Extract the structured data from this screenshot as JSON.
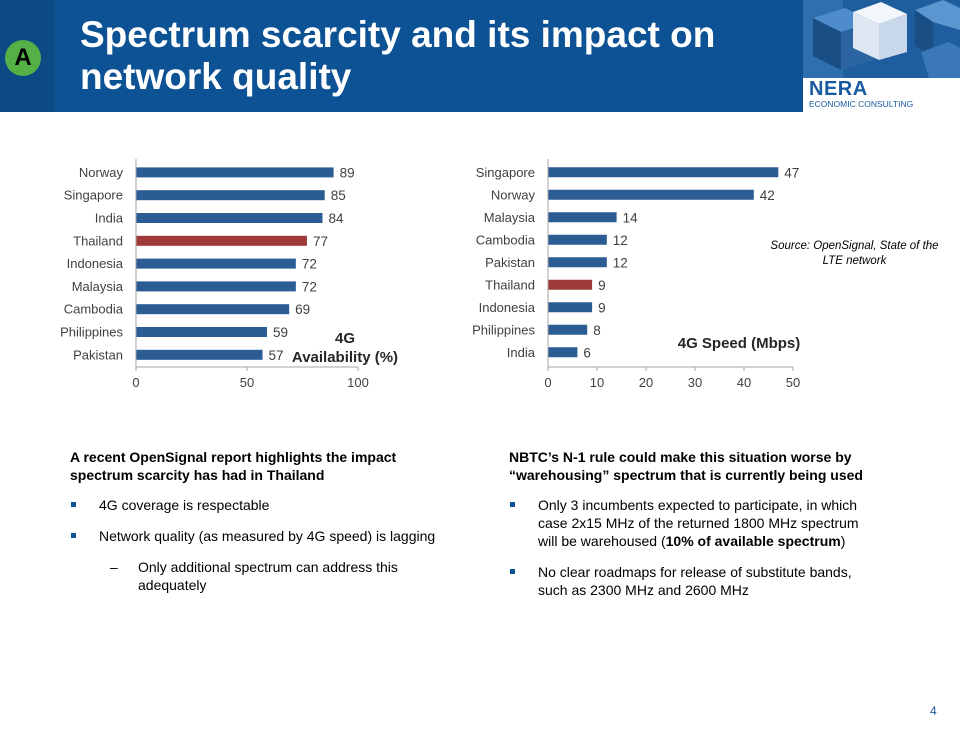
{
  "header": {
    "badge": "A",
    "title": "Spectrum scarcity and its impact on network quality",
    "logo_name": "NERA",
    "logo_sub": "ECONOMIC CONSULTING"
  },
  "colors": {
    "header_blue": "#0c5294",
    "bar": "#2b5c93",
    "highlight": "#9e3a3a",
    "badge": "#55b046"
  },
  "chart_data": [
    {
      "type": "bar",
      "orientation": "horizontal",
      "title": "4G Availability (%)",
      "categories": [
        "Norway",
        "Singapore",
        "India",
        "Thailand",
        "Indonesia",
        "Malaysia",
        "Cambodia",
        "Philippines",
        "Pakistan"
      ],
      "values": [
        89,
        85,
        84,
        77,
        72,
        72,
        69,
        59,
        57
      ],
      "highlight": "Thailand",
      "xlim": [
        0,
        100
      ],
      "xticks": [
        0,
        50,
        100
      ],
      "grid": false
    },
    {
      "type": "bar",
      "orientation": "horizontal",
      "title": "4G Speed (Mbps)",
      "categories": [
        "Singapore",
        "Norway",
        "Malaysia",
        "Cambodia",
        "Pakistan",
        "Thailand",
        "Indonesia",
        "Philippines",
        "India"
      ],
      "values": [
        47,
        42,
        14,
        12,
        12,
        9,
        9,
        8,
        6
      ],
      "highlight": "Thailand",
      "xlim": [
        0,
        50
      ],
      "xticks": [
        0,
        10,
        20,
        30,
        40,
        50
      ],
      "grid": false
    }
  ],
  "source": "Source: OpenSignal, State of the LTE network",
  "left": {
    "heading": "A recent OpenSignal report highlights the impact spectrum scarcity has had in Thailand",
    "bullet1": "4G coverage is respectable",
    "bullet2": "Network quality (as measured by 4G speed) is lagging",
    "sub_dash": "–",
    "sub1": "Only additional spectrum can address this adequately"
  },
  "right": {
    "heading": "NBTC’s N-1 rule could make this situation worse by “warehousing” spectrum that is currently being used",
    "bullet1_a": "Only 3 incumbents expected to participate, in which case 2x15 MHz of the returned 1800 MHz spectrum will be warehoused (",
    "bullet1_b": "10% of available spectrum",
    "bullet1_c": ")",
    "bullet2": "No clear roadmaps for release of substitute bands, such as 2300 MHz  and 2600 MHz"
  },
  "page_number": "4"
}
